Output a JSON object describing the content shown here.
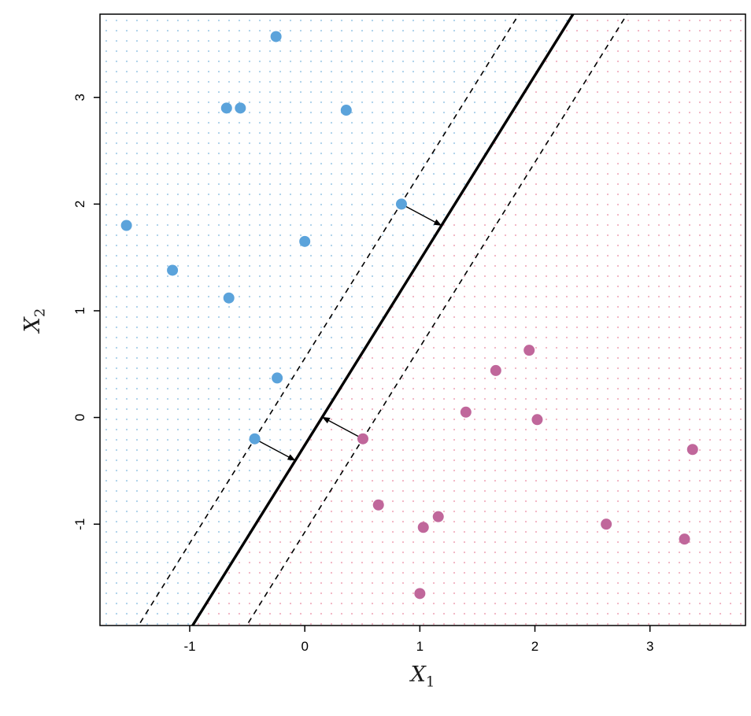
{
  "figure": {
    "xlabel_base": "X",
    "xlabel_sub": "1",
    "ylabel_base": "X",
    "ylabel_sub": "2"
  },
  "chart_data": {
    "type": "scatter",
    "title": "",
    "xlabel": "X_1",
    "ylabel": "X_2",
    "xlim": [
      -1.78,
      3.83
    ],
    "ylim": [
      -1.95,
      3.78
    ],
    "xticks": [
      -1,
      0,
      1,
      2,
      3
    ],
    "yticks": [
      -1,
      0,
      1,
      2,
      3
    ],
    "grid": "classification-dot-grid",
    "legend": "none",
    "boundary": {
      "description": "maximal margin separating hyperplane with dashed margin lines",
      "slope": 1.733,
      "intercept": -0.26,
      "margin_offset_x": 0.47,
      "solid_line_width": 3.4,
      "dashed_line_width": 1.6
    },
    "series": [
      {
        "name": "blue-class",
        "color": "#5BA3DB",
        "points": [
          [
            -0.25,
            3.57
          ],
          [
            -0.68,
            2.9
          ],
          [
            -0.56,
            2.9
          ],
          [
            0.36,
            2.88
          ],
          [
            0.84,
            2.0
          ],
          [
            -1.55,
            1.8
          ],
          [
            0.0,
            1.65
          ],
          [
            -1.15,
            1.38
          ],
          [
            -0.66,
            1.12
          ],
          [
            -0.24,
            0.37
          ],
          [
            -0.435,
            -0.2
          ]
        ]
      },
      {
        "name": "purple-class",
        "color": "#C0679B",
        "points": [
          [
            1.95,
            0.63
          ],
          [
            1.66,
            0.44
          ],
          [
            1.4,
            0.05
          ],
          [
            2.02,
            -0.02
          ],
          [
            3.37,
            -0.3
          ],
          [
            0.505,
            -0.2
          ],
          [
            0.64,
            -0.82
          ],
          [
            1.16,
            -0.93
          ],
          [
            1.03,
            -1.03
          ],
          [
            2.62,
            -1.0
          ],
          [
            3.3,
            -1.14
          ],
          [
            1.0,
            -1.65
          ]
        ]
      }
    ],
    "support_vectors": [
      [
        0.84,
        2.0
      ],
      [
        -0.435,
        -0.2
      ],
      [
        0.505,
        -0.2
      ]
    ],
    "support_vector_arrows": [
      {
        "from": [
          0.84,
          2.0
        ],
        "to": [
          1.188,
          1.799
        ]
      },
      {
        "from": [
          -0.435,
          -0.2
        ],
        "to": [
          -0.083,
          -0.403
        ]
      },
      {
        "from": [
          0.505,
          -0.2
        ],
        "to": [
          0.152,
          0.003
        ]
      }
    ],
    "region_colors": {
      "blue_side": "#A9CFE9",
      "purple_side": "#F0B1C1"
    },
    "point_radius_px": 7,
    "grid_dot_spacing_px": 13
  }
}
